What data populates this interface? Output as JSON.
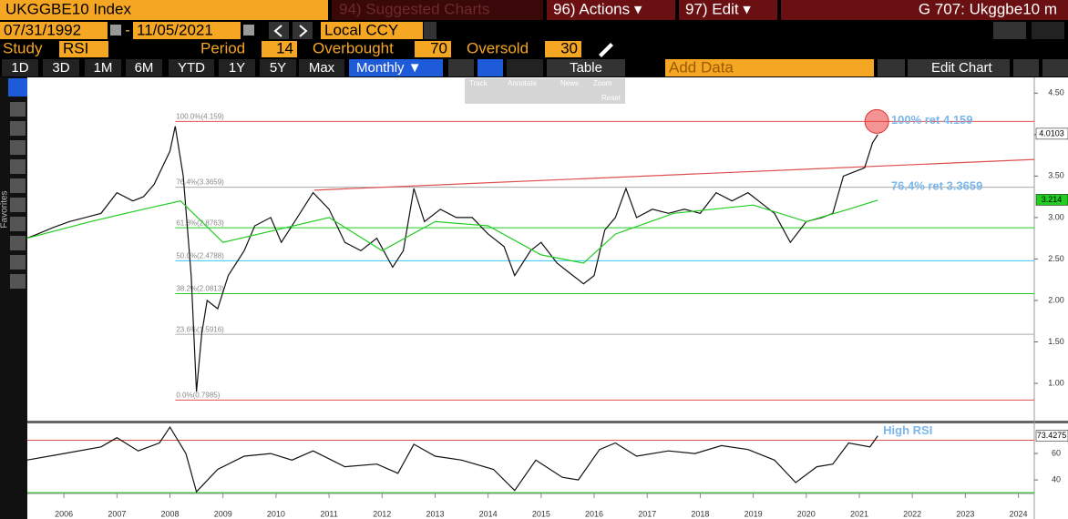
{
  "ui": {
    "ticker": "UKGGBE10 Index",
    "menu": [
      "94) Suggested Charts",
      "96) Actions ▾",
      "97) Edit ▾"
    ],
    "chart_id": "G 707: Ukggbe10 m",
    "start_date": "07/31/1992",
    "date_sep": "-",
    "end_date": "11/05/2021",
    "currency": "Local CCY",
    "study": {
      "label": "Study",
      "name": "RSI",
      "period_label": "Period",
      "period": 14,
      "overbought_label": "Overbought",
      "overbought": 70,
      "oversold_label": "Oversold",
      "oversold": 30
    },
    "ranges": [
      "1D",
      "3D",
      "1M",
      "6M",
      "YTD",
      "1Y",
      "5Y",
      "Max"
    ],
    "frequency": "Monthly ▼",
    "table": "Table",
    "add_data": "Add Data",
    "edit_chart": "Edit Chart",
    "favorites": "Favorites",
    "tools": [
      "Track",
      "Annotate",
      "News",
      "Zoom"
    ],
    "reset": "Reset"
  },
  "chart_data": [
    {
      "type": "line",
      "xlim": [
        2005.81,
        2024.8
      ],
      "ylim": [
        0.55,
        4.69
      ],
      "yticks": [
        {
          "value": 4.5,
          "label": "4.50"
        },
        {
          "value": 4.0,
          "label": "4.00"
        },
        {
          "value": 3.5,
          "label": "3.50"
        },
        {
          "value": 3.0,
          "label": "3.00"
        },
        {
          "value": 2.5,
          "label": "2.50"
        },
        {
          "value": 2.0,
          "label": "2.00"
        },
        {
          "value": 1.5,
          "label": "1.50"
        },
        {
          "value": 1.0,
          "label": "1.00"
        }
      ],
      "series": [
        {
          "color": "#111111",
          "last": 4.0103,
          "x": [
            2005.8,
            2006.0,
            2006.3,
            2006.6,
            2006.9,
            2007.2,
            2007.5,
            2007.8,
            2008.0,
            2008.2,
            2008.5,
            2008.6,
            2008.75,
            2008.9,
            2009.0,
            2009.1,
            2009.2,
            2009.4,
            2009.6,
            2009.9,
            2010.1,
            2010.4,
            2010.6,
            2010.9,
            2011.2,
            2011.5,
            2011.8,
            2012.1,
            2012.4,
            2012.7,
            2012.9,
            2013.1,
            2013.3,
            2013.6,
            2013.9,
            2014.2,
            2014.5,
            2014.8,
            2015.0,
            2015.3,
            2015.5,
            2015.8,
            2016.0,
            2016.3,
            2016.5,
            2016.7,
            2016.9,
            2017.1,
            2017.3,
            2017.6,
            2017.9,
            2018.2,
            2018.5,
            2018.8,
            2019.1,
            2019.4,
            2019.7,
            2019.9,
            2020.2,
            2020.5,
            2020.8,
            2021.0,
            2021.2,
            2021.4,
            2021.6,
            2021.75,
            2021.85
          ],
          "values": [
            2.75,
            2.8,
            2.88,
            2.95,
            3.0,
            3.05,
            3.3,
            3.2,
            3.25,
            3.4,
            3.8,
            4.1,
            3.5,
            2.3,
            0.9,
            1.6,
            2.0,
            1.9,
            2.3,
            2.6,
            2.9,
            3.0,
            2.7,
            3.0,
            3.3,
            3.1,
            2.7,
            2.6,
            2.75,
            2.4,
            2.6,
            3.35,
            2.95,
            3.1,
            3.0,
            3.0,
            2.8,
            2.65,
            2.3,
            2.6,
            2.7,
            2.45,
            2.35,
            2.2,
            2.3,
            2.85,
            3.0,
            3.35,
            3.0,
            3.1,
            3.05,
            3.1,
            3.05,
            3.3,
            3.2,
            3.3,
            3.15,
            3.05,
            2.7,
            2.95,
            3.0,
            3.05,
            3.5,
            3.55,
            3.6,
            3.9,
            4.0
          ]
        },
        {
          "color": "#22cc22",
          "last": 3.214,
          "x": [
            2005.8,
            2007.0,
            2008.0,
            2008.7,
            2009.5,
            2010.5,
            2011.5,
            2012.5,
            2013.5,
            2014.5,
            2015.5,
            2016.3,
            2016.9,
            2018.0,
            2019.5,
            2020.5,
            2021.3,
            2021.85
          ],
          "values": [
            2.75,
            2.95,
            3.1,
            3.2,
            2.7,
            2.85,
            3.0,
            2.6,
            2.95,
            2.9,
            2.55,
            2.45,
            2.8,
            3.05,
            3.15,
            2.95,
            3.1,
            3.21
          ]
        }
      ],
      "fib_start": 2008.6,
      "levels": [
        {
          "label": "100.0%(4.159)",
          "value": 4.159,
          "color": "#e05050"
        },
        {
          "label": "76.4%(3.3659)",
          "value": 3.3659,
          "color": "#aaaaaa"
        },
        {
          "label": "61.8%(2.8763)",
          "value": 2.8763,
          "color": "#22cc22"
        },
        {
          "label": "50.0%(2.4788)",
          "value": 2.4788,
          "color": "#33ccee"
        },
        {
          "label": "38.2%(2.0813)",
          "value": 2.0813,
          "color": "#22cc22"
        },
        {
          "label": "23.6%(1.5916)",
          "value": 1.5916,
          "color": "#aaaaaa"
        },
        {
          "label": "0.0%(0.7985)",
          "value": 0.7985,
          "color": "#e05050"
        }
      ],
      "trendline": {
        "x": [
          2011.22,
          2024.8
        ],
        "values": [
          3.33,
          3.7
        ],
        "color": "#e05050"
      },
      "highlight": {
        "x": 2021.83,
        "value": 4.159
      },
      "annotations": [
        {
          "text": "100% ret 4.159",
          "x": 2022.1,
          "value": 4.17
        },
        {
          "text": "76.4% ret 3.3659",
          "x": 2022.1,
          "value": 3.37
        }
      ]
    },
    {
      "type": "line",
      "xlim": [
        2005.81,
        2024.8
      ],
      "ylim": [
        29.7,
        82.8
      ],
      "yticks": [
        60,
        40
      ],
      "series": [
        {
          "color": "#111111",
          "last": 73.4275,
          "x": [
            2005.8,
            2006.5,
            2007.2,
            2007.5,
            2007.9,
            2008.3,
            2008.5,
            2008.8,
            2009.0,
            2009.4,
            2009.9,
            2010.4,
            2010.8,
            2011.2,
            2011.8,
            2012.4,
            2012.8,
            2013.1,
            2013.5,
            2014.0,
            2014.6,
            2015.0,
            2015.4,
            2015.9,
            2016.2,
            2016.6,
            2016.9,
            2017.3,
            2017.9,
            2018.4,
            2018.9,
            2019.4,
            2019.9,
            2020.3,
            2020.7,
            2021.0,
            2021.3,
            2021.7,
            2021.85
          ],
          "values": [
            55,
            60,
            65,
            72,
            62,
            68,
            80,
            60,
            31,
            48,
            58,
            60,
            55,
            62,
            50,
            52,
            45,
            67,
            58,
            55,
            48,
            32,
            55,
            42,
            40,
            63,
            68,
            58,
            62,
            60,
            66,
            63,
            55,
            38,
            50,
            52,
            68,
            65,
            73.4
          ]
        }
      ],
      "annotations": [
        {
          "text": "High RSI",
          "x": 2021.95,
          "value": 77
        }
      ],
      "xticks": [
        {
          "value": 2006.5,
          "label": "2006"
        },
        {
          "value": 2007.5,
          "label": "2007"
        },
        {
          "value": 2008.5,
          "label": "2008"
        },
        {
          "value": 2009.5,
          "label": "2009"
        },
        {
          "value": 2010.5,
          "label": "2010"
        },
        {
          "value": 2011.5,
          "label": "2011"
        },
        {
          "value": 2012.5,
          "label": "2012"
        },
        {
          "value": 2013.5,
          "label": "2013"
        },
        {
          "value": 2014.5,
          "label": "2014"
        },
        {
          "value": 2015.5,
          "label": "2015"
        },
        {
          "value": 2016.5,
          "label": "2016"
        },
        {
          "value": 2017.5,
          "label": "2017"
        },
        {
          "value": 2018.5,
          "label": "2018"
        },
        {
          "value": 2019.5,
          "label": "2019"
        },
        {
          "value": 2020.5,
          "label": "2020"
        },
        {
          "value": 2021.5,
          "label": "2021"
        },
        {
          "value": 2022.5,
          "label": "2022"
        },
        {
          "value": 2023.5,
          "label": "2023"
        },
        {
          "value": 2024.5,
          "label": "2024"
        }
      ]
    }
  ]
}
